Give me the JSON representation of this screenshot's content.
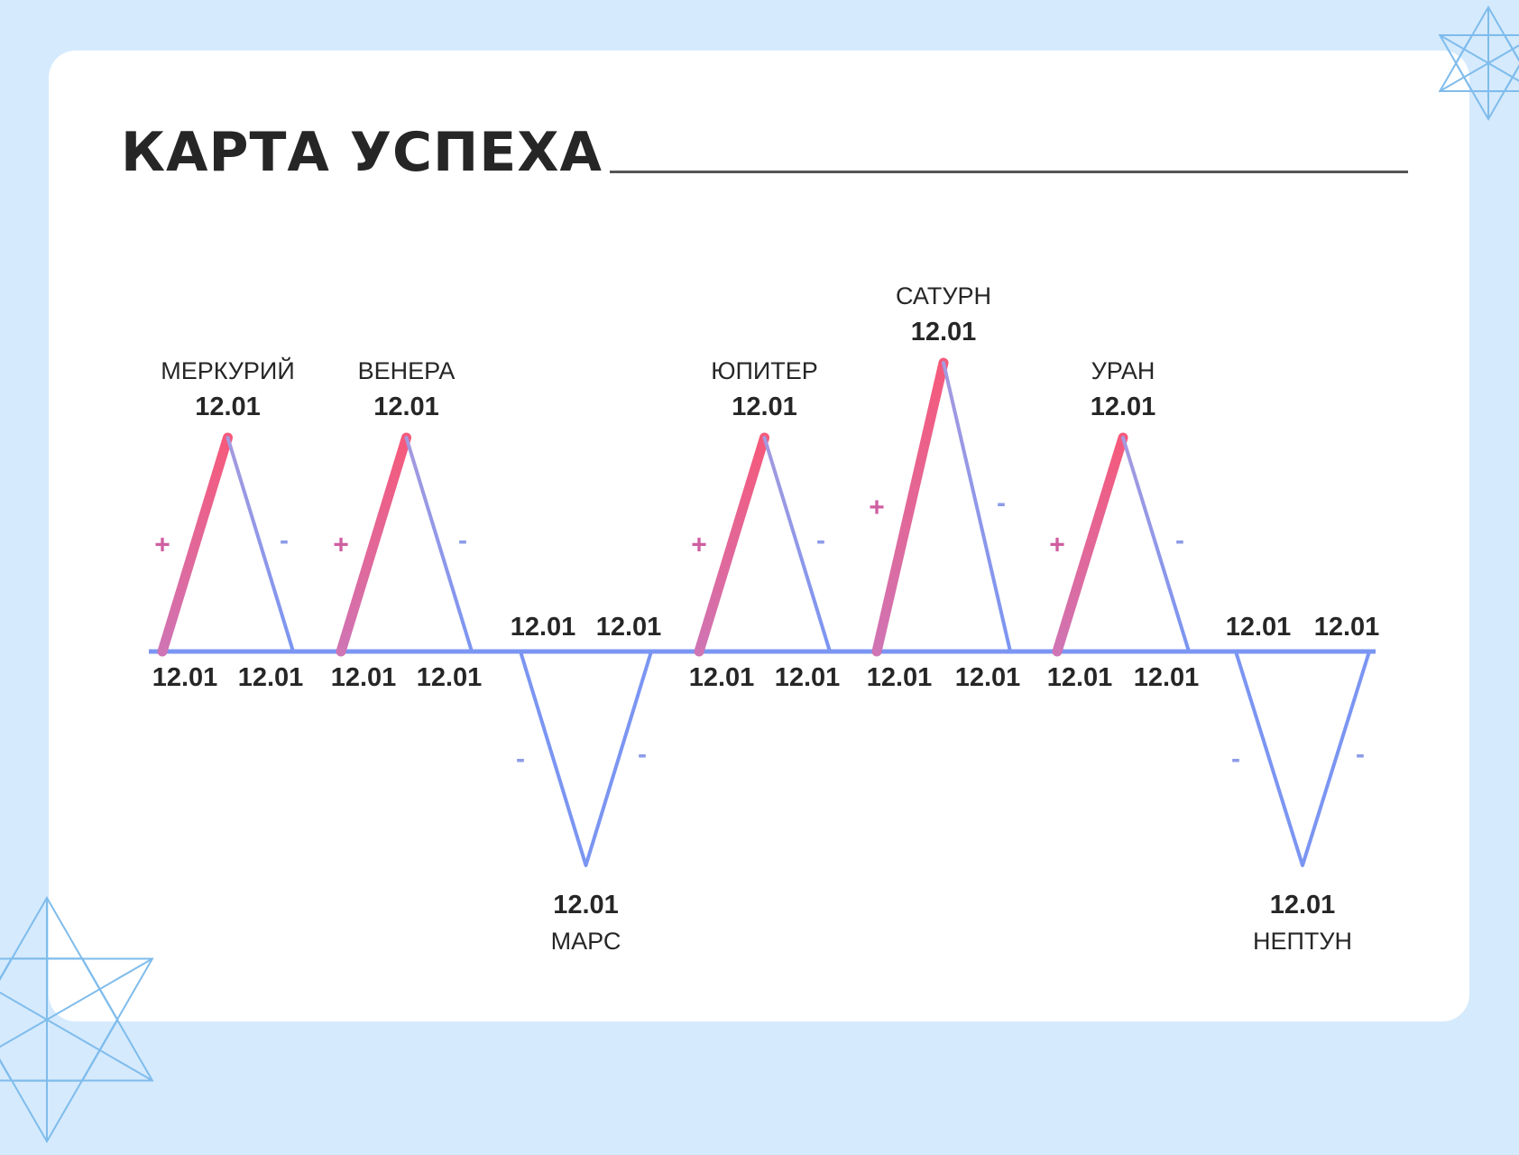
{
  "title": "КАРТА УСПЕХА",
  "colors": {
    "background": "#d5eafd",
    "card": "#ffffff",
    "axis": "#7b95f2",
    "rise_start": "#cf74b4",
    "rise_end": "#f6597a",
    "fall_start": "#a59adf",
    "fall_end": "#7b95f2",
    "plus_sign": "#cf5fa0",
    "minus_sign": "#8c9be8",
    "text": "#262626",
    "decoration": "#7fbcec"
  },
  "decorations": [
    "star-ornament-top-right",
    "star-ornament-bottom-left"
  ],
  "chart_data": {
    "type": "line",
    "title": "КАРТА УСПЕХА",
    "ylim": [
      -1,
      1.4
    ],
    "series": [
      {
        "name": "МЕРКУРИЙ",
        "peak": 1,
        "peak_label": "12.01",
        "start_label": "12.01",
        "end_label": "12.01",
        "left_sign": "+",
        "right_sign": "-"
      },
      {
        "name": "ВЕНЕРА",
        "peak": 1,
        "peak_label": "12.01",
        "start_label": "12.01",
        "end_label": "12.01",
        "left_sign": "+",
        "right_sign": "-"
      },
      {
        "name": "МАРС",
        "peak": -1,
        "peak_label": "12.01",
        "start_label": "12.01",
        "end_label": "12.01",
        "left_sign": "-",
        "right_sign": "-"
      },
      {
        "name": "ЮПИТЕР",
        "peak": 1,
        "peak_label": "12.01",
        "start_label": "12.01",
        "end_label": "12.01",
        "left_sign": "+",
        "right_sign": "-"
      },
      {
        "name": "САТУРН",
        "peak": 1.35,
        "peak_label": "12.01",
        "start_label": "12.01",
        "end_label": "12.01",
        "left_sign": "+",
        "right_sign": "-"
      },
      {
        "name": "УРАН",
        "peak": 1,
        "peak_label": "12.01",
        "start_label": "12.01",
        "end_label": "12.01",
        "left_sign": "+",
        "right_sign": "-"
      },
      {
        "name": "НЕПТУН",
        "peak": -1,
        "peak_label": "12.01",
        "start_label": "12.01",
        "end_label": "12.01",
        "left_sign": "-",
        "right_sign": "-"
      }
    ]
  }
}
